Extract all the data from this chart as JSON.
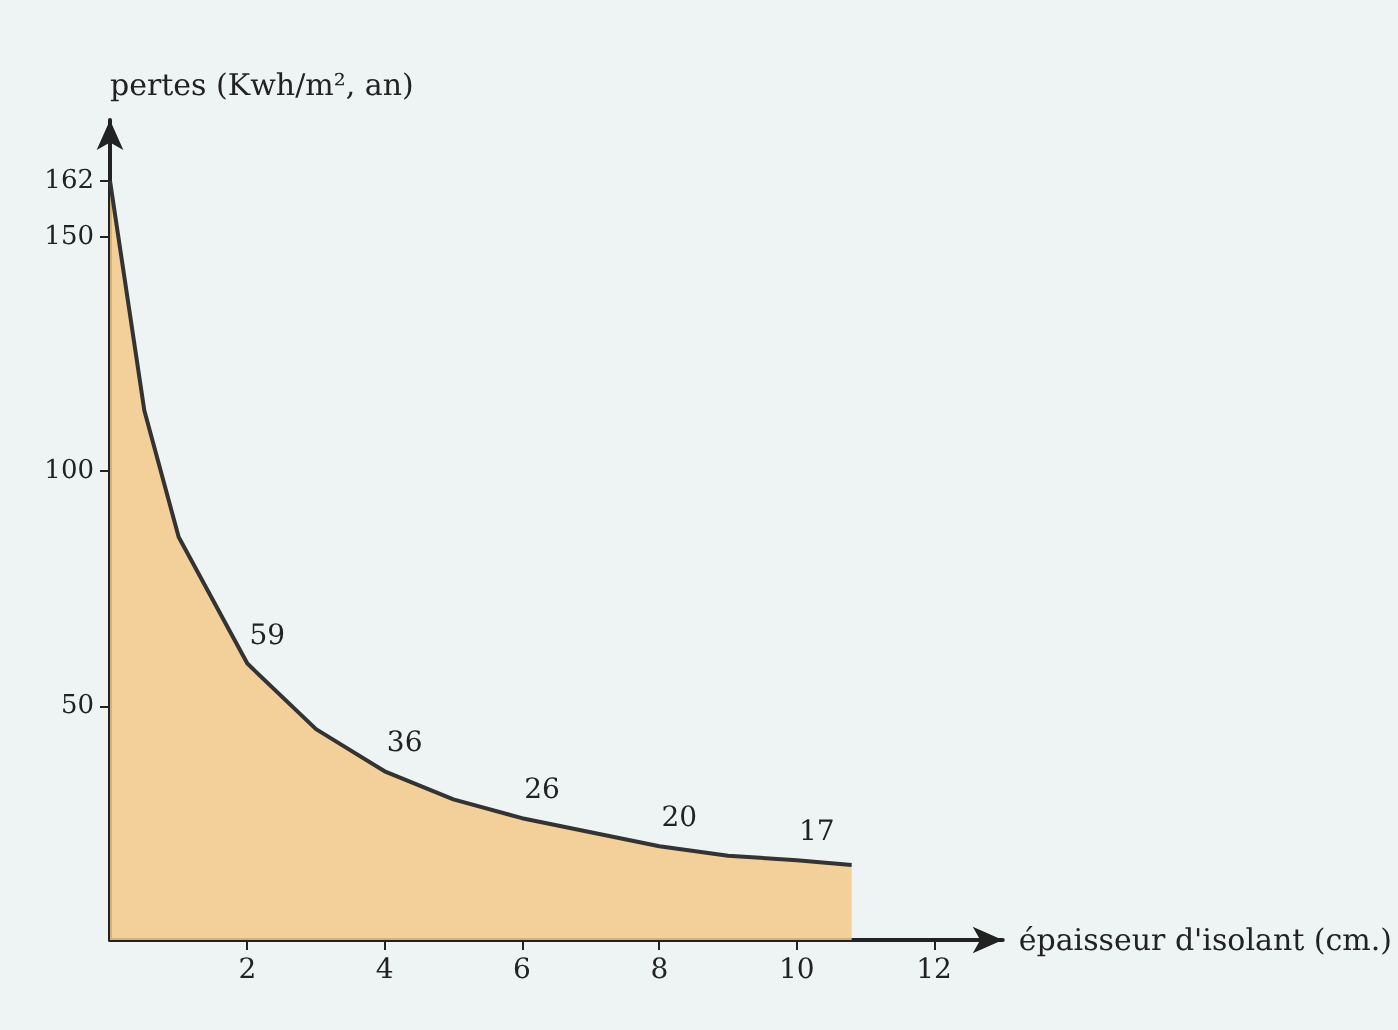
{
  "chart_data": {
    "type": "area",
    "xlabel": "épaisseur d'isolant (cm.)",
    "ylabel": "pertes (Kwh/m², an)",
    "x": [
      0,
      0.5,
      1,
      2,
      3,
      4,
      5,
      6,
      7,
      8,
      9,
      10,
      10.8
    ],
    "series": [
      {
        "color": "#f3c98a",
        "values": [
          162,
          113,
          86,
          59,
          45,
          36,
          30,
          26,
          23,
          20,
          18,
          17,
          16
        ],
        "value_labels": [
          null,
          null,
          null,
          "59",
          null,
          "36",
          null,
          "26",
          null,
          "20",
          null,
          "17",
          null
        ]
      }
    ],
    "xlim": [
      0,
      13
    ],
    "ylim": [
      0,
      175
    ],
    "xticks": [
      2,
      4,
      6,
      8,
      10,
      12
    ],
    "yticks": [
      50,
      100,
      150,
      162
    ],
    "grid": false,
    "marker": "none"
  }
}
